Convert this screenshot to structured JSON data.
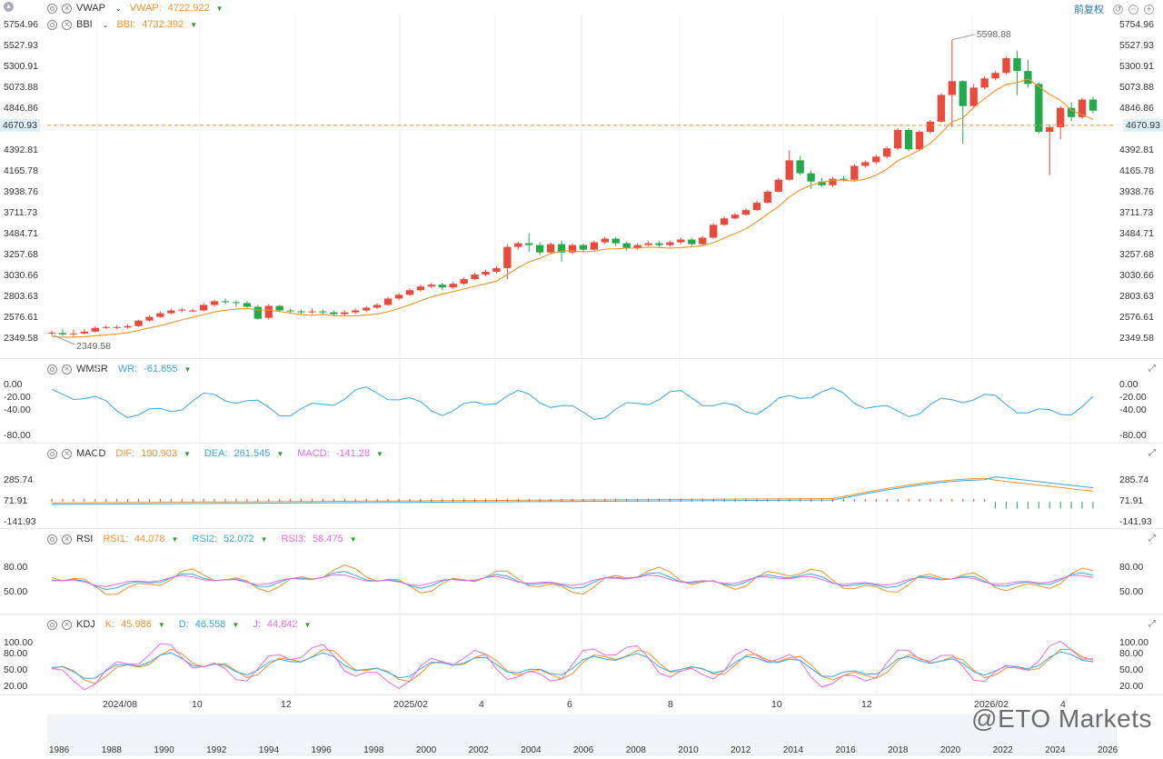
{
  "indicators": [
    {
      "id": "vwap",
      "name": "VWAP",
      "series": [
        {
          "label": "VWAP:",
          "value": "4722.922",
          "color": "#f0932b"
        }
      ]
    },
    {
      "id": "bbi",
      "name": "BBI",
      "series": [
        {
          "label": "BBI:",
          "value": "4732.392",
          "color": "#f0932b"
        }
      ]
    },
    {
      "id": "wmsr",
      "name": "WMSR",
      "series": [
        {
          "label": "WR:",
          "value": "-61.855",
          "color": "#37a7e6"
        }
      ]
    },
    {
      "id": "macd",
      "name": "MACD",
      "series": [
        {
          "label": "DIF:",
          "value": "190.903",
          "color": "#f0932b"
        },
        {
          "label": "DEA:",
          "value": "261.545",
          "color": "#37a7e6"
        },
        {
          "label": "MACD:",
          "value": "-141.28",
          "color": "#e86de0"
        }
      ]
    },
    {
      "id": "rsi",
      "name": "RSI",
      "series": [
        {
          "label": "RSI1:",
          "value": "44.078",
          "color": "#f0932b"
        },
        {
          "label": "RSI2:",
          "value": "52.072",
          "color": "#37a7e6"
        },
        {
          "label": "RSI3:",
          "value": "58.475",
          "color": "#e86de0"
        }
      ]
    },
    {
      "id": "kdj",
      "name": "KDJ",
      "series": [
        {
          "label": "K:",
          "value": "45.986",
          "color": "#f0932b"
        },
        {
          "label": "D:",
          "value": "46.558",
          "color": "#37a7e6"
        },
        {
          "label": "J:",
          "value": "44.842",
          "color": "#e86de0"
        }
      ]
    }
  ],
  "toolbar": {
    "adjust_label": "前复权"
  },
  "price_axis": [
    "5754.96",
    "5527.93",
    "5300.91",
    "5073.88",
    "4846.86",
    "4392.81",
    "4165.78",
    "3938.76",
    "3711.73",
    "3484.71",
    "3257.68",
    "3030.66",
    "2803.63",
    "2576.61",
    "2349.58"
  ],
  "current_price": "4670.93",
  "high_label": "5598.88",
  "low_label": "2349.58",
  "wr_axis": [
    "0.00",
    "-20.00",
    "-40.00",
    "-80.00"
  ],
  "macd_axis": [
    "285.74",
    "71.91",
    "-141.93"
  ],
  "rsi_axis": [
    "80.00",
    "50.00"
  ],
  "kdj_axis": [
    "100.00",
    "80.00",
    "50.00",
    "20.00"
  ],
  "time_axis": [
    "2024/08",
    "10",
    "12",
    "2025/02",
    "4",
    "6",
    "8",
    "10",
    "12",
    "2026/02",
    "4"
  ],
  "nav_axis": [
    "1986",
    "1988",
    "1990",
    "1992",
    "1994",
    "1996",
    "1998",
    "2000",
    "2002",
    "2004",
    "2006",
    "2008",
    "2010",
    "2012",
    "2014",
    "2016",
    "2018",
    "2020",
    "2022",
    "2024",
    "2026"
  ],
  "watermark": "@ETO Markets",
  "colors": {
    "up": "#e84a3b",
    "down": "#22a94a",
    "bbi": "#f0932b",
    "wr": "#37a7e6",
    "dif": "#f0932b",
    "dea": "#37a7e6",
    "j": "#e86de0"
  },
  "chart_data": {
    "type": "line",
    "candles": [
      [
        2410,
        2420,
        2390,
        2440
      ],
      [
        2415,
        2400,
        2380,
        2460
      ],
      [
        2400,
        2410,
        2370,
        2450
      ],
      [
        2410,
        2430,
        2400,
        2460
      ],
      [
        2430,
        2470,
        2420,
        2490
      ],
      [
        2470,
        2480,
        2460,
        2500
      ],
      [
        2480,
        2480,
        2460,
        2500
      ],
      [
        2475,
        2490,
        2460,
        2510
      ],
      [
        2490,
        2550,
        2480,
        2560
      ],
      [
        2550,
        2590,
        2540,
        2610
      ],
      [
        2590,
        2630,
        2580,
        2650
      ],
      [
        2630,
        2660,
        2620,
        2680
      ],
      [
        2660,
        2670,
        2640,
        2690
      ],
      [
        2660,
        2660,
        2640,
        2680
      ],
      [
        2660,
        2720,
        2650,
        2740
      ],
      [
        2720,
        2760,
        2700,
        2780
      ],
      [
        2760,
        2750,
        2730,
        2790
      ],
      [
        2750,
        2740,
        2700,
        2770
      ],
      [
        2740,
        2700,
        2690,
        2760
      ],
      [
        2700,
        2570,
        2560,
        2720
      ],
      [
        2580,
        2710,
        2560,
        2730
      ],
      [
        2710,
        2660,
        2640,
        2720
      ],
      [
        2660,
        2650,
        2630,
        2680
      ],
      [
        2650,
        2640,
        2620,
        2670
      ],
      [
        2640,
        2650,
        2620,
        2680
      ],
      [
        2650,
        2640,
        2620,
        2670
      ],
      [
        2640,
        2620,
        2600,
        2660
      ],
      [
        2620,
        2640,
        2600,
        2660
      ],
      [
        2640,
        2660,
        2620,
        2680
      ],
      [
        2660,
        2690,
        2640,
        2710
      ],
      [
        2690,
        2720,
        2680,
        2740
      ],
      [
        2720,
        2790,
        2710,
        2810
      ],
      [
        2790,
        2830,
        2770,
        2850
      ],
      [
        2830,
        2880,
        2820,
        2900
      ],
      [
        2880,
        2920,
        2860,
        2940
      ],
      [
        2920,
        2940,
        2900,
        2960
      ],
      [
        2940,
        2910,
        2880,
        2960
      ],
      [
        2910,
        2950,
        2890,
        2970
      ],
      [
        2950,
        3000,
        2940,
        3020
      ],
      [
        3000,
        3050,
        2990,
        3070
      ],
      [
        3050,
        3080,
        3030,
        3100
      ],
      [
        3080,
        3120,
        3060,
        3140
      ],
      [
        3120,
        3350,
        3000,
        3380
      ],
      [
        3350,
        3390,
        3320,
        3410
      ],
      [
        3390,
        3370,
        3300,
        3500
      ],
      [
        3370,
        3290,
        3260,
        3400
      ],
      [
        3290,
        3380,
        3270,
        3400
      ],
      [
        3380,
        3290,
        3190,
        3420
      ],
      [
        3290,
        3370,
        3270,
        3390
      ],
      [
        3370,
        3320,
        3300,
        3390
      ],
      [
        3320,
        3400,
        3310,
        3420
      ],
      [
        3400,
        3440,
        3380,
        3460
      ],
      [
        3440,
        3390,
        3360,
        3460
      ],
      [
        3390,
        3340,
        3310,
        3410
      ],
      [
        3340,
        3370,
        3320,
        3390
      ],
      [
        3370,
        3390,
        3360,
        3410
      ],
      [
        3390,
        3370,
        3350,
        3410
      ],
      [
        3370,
        3400,
        3350,
        3420
      ],
      [
        3400,
        3430,
        3380,
        3450
      ],
      [
        3430,
        3380,
        3360,
        3450
      ],
      [
        3380,
        3450,
        3370,
        3470
      ],
      [
        3450,
        3590,
        3440,
        3610
      ],
      [
        3590,
        3660,
        3580,
        3680
      ],
      [
        3660,
        3700,
        3650,
        3720
      ],
      [
        3700,
        3750,
        3690,
        3770
      ],
      [
        3750,
        3830,
        3740,
        3850
      ],
      [
        3830,
        3950,
        3820,
        3970
      ],
      [
        3950,
        4080,
        3940,
        4100
      ],
      [
        4080,
        4290,
        4070,
        4400
      ],
      [
        4290,
        4150,
        4130,
        4340
      ],
      [
        4150,
        4060,
        3980,
        4180
      ],
      [
        4060,
        4020,
        4000,
        4100
      ],
      [
        4020,
        4090,
        4000,
        4110
      ],
      [
        4090,
        4080,
        4060,
        4120
      ],
      [
        4080,
        4230,
        4070,
        4250
      ],
      [
        4230,
        4270,
        4210,
        4290
      ],
      [
        4270,
        4330,
        4250,
        4350
      ],
      [
        4330,
        4420,
        4310,
        4440
      ],
      [
        4420,
        4620,
        4400,
        4640
      ],
      [
        4620,
        4410,
        4390,
        4640
      ],
      [
        4410,
        4600,
        4390,
        4620
      ],
      [
        4600,
        4710,
        4580,
        4730
      ],
      [
        4710,
        5000,
        4700,
        5020
      ],
      [
        5000,
        5150,
        4650,
        5598
      ],
      [
        5150,
        4880,
        4470,
        5160
      ],
      [
        4880,
        5080,
        4860,
        5120
      ],
      [
        5080,
        5180,
        5060,
        5200
      ],
      [
        5180,
        5240,
        5160,
        5260
      ],
      [
        5240,
        5400,
        5220,
        5420
      ],
      [
        5400,
        5260,
        5000,
        5480
      ],
      [
        5260,
        5120,
        5080,
        5380
      ],
      [
        5120,
        4600,
        4580,
        5140
      ],
      [
        4600,
        4650,
        4130,
        4680
      ],
      [
        4650,
        4860,
        4520,
        4880
      ],
      [
        4860,
        4760,
        4720,
        4920
      ],
      [
        4760,
        4950,
        4740,
        4970
      ],
      [
        4950,
        4830,
        4800,
        4980
      ]
    ]
  }
}
